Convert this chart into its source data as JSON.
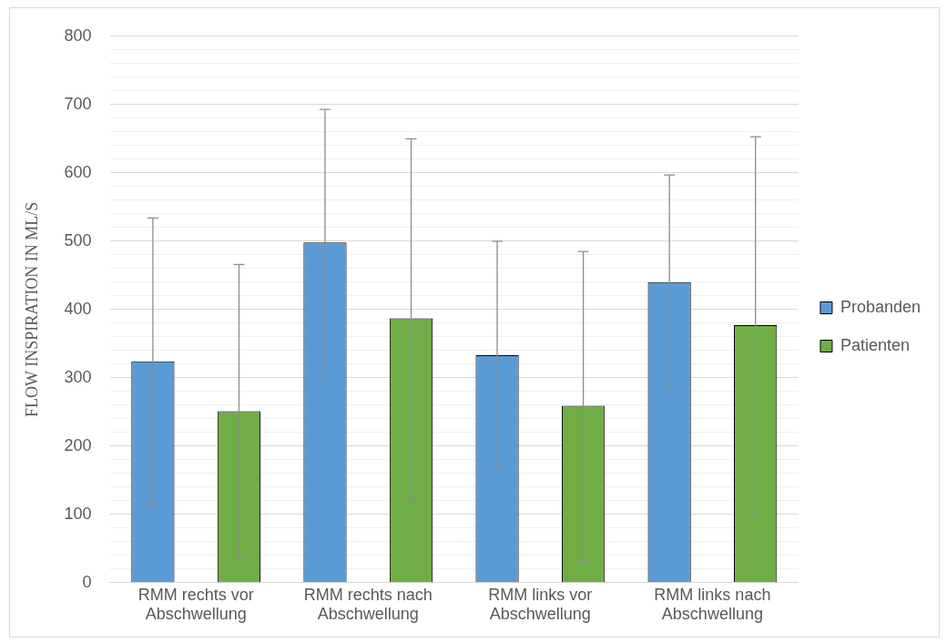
{
  "chart_data": {
    "type": "bar",
    "ylabel": "FLOW INSPIRATION IN ML/S",
    "categories": [
      "RMM rechts vor Abschwellung",
      "RMM rechts nach Abschwellung",
      "RMM links vor Abschwellung",
      "RMM links nach Abschwellung"
    ],
    "series": [
      {
        "name": "Probanden",
        "color": "#5b9bd5",
        "values": [
          324,
          498,
          333,
          440
        ],
        "errors": [
          210,
          195,
          167,
          157
        ]
      },
      {
        "name": "Patienten",
        "color": "#70ad47",
        "values": [
          251,
          387,
          259,
          377
        ],
        "errors": [
          215,
          263,
          226,
          276
        ]
      }
    ],
    "ylim": [
      0,
      800
    ],
    "yticks": [
      0,
      {
        "value": 20,
        "label": null
      },
      {
        "value": 40,
        "label": null
      },
      {
        "value": 60,
        "label": null
      },
      {
        "value": 80,
        "label": null
      },
      100,
      {
        "value": 120,
        "label": null
      },
      {
        "value": 140,
        "label": null
      },
      {
        "value": 160,
        "label": null
      },
      {
        "value": 180,
        "label": null
      },
      200,
      {
        "value": 220,
        "label": null
      },
      {
        "value": 240,
        "label": null
      },
      {
        "value": 260,
        "label": null
      },
      {
        "value": 280,
        "label": null
      },
      300,
      {
        "value": 320,
        "label": null
      },
      {
        "value": 340,
        "label": null
      },
      {
        "value": 360,
        "label": null
      },
      {
        "value": 380,
        "label": null
      },
      400,
      {
        "value": 420,
        "label": null
      },
      {
        "value": 440,
        "label": null
      },
      {
        "value": 460,
        "label": null
      },
      {
        "value": 480,
        "label": null
      },
      500,
      {
        "value": 520,
        "label": null
      },
      {
        "value": 540,
        "label": null
      },
      {
        "value": 560,
        "label": null
      },
      {
        "value": 580,
        "label": null
      },
      600,
      {
        "value": 620,
        "label": null
      },
      {
        "value": 640,
        "label": null
      },
      {
        "value": 660,
        "label": null
      },
      {
        "value": 680,
        "label": null
      },
      700,
      {
        "value": 720,
        "label": null
      },
      {
        "value": 740,
        "label": null
      },
      {
        "value": 760,
        "label": null
      },
      {
        "value": 780,
        "label": null
      },
      800
    ],
    "grid": "y",
    "legend": "right"
  }
}
